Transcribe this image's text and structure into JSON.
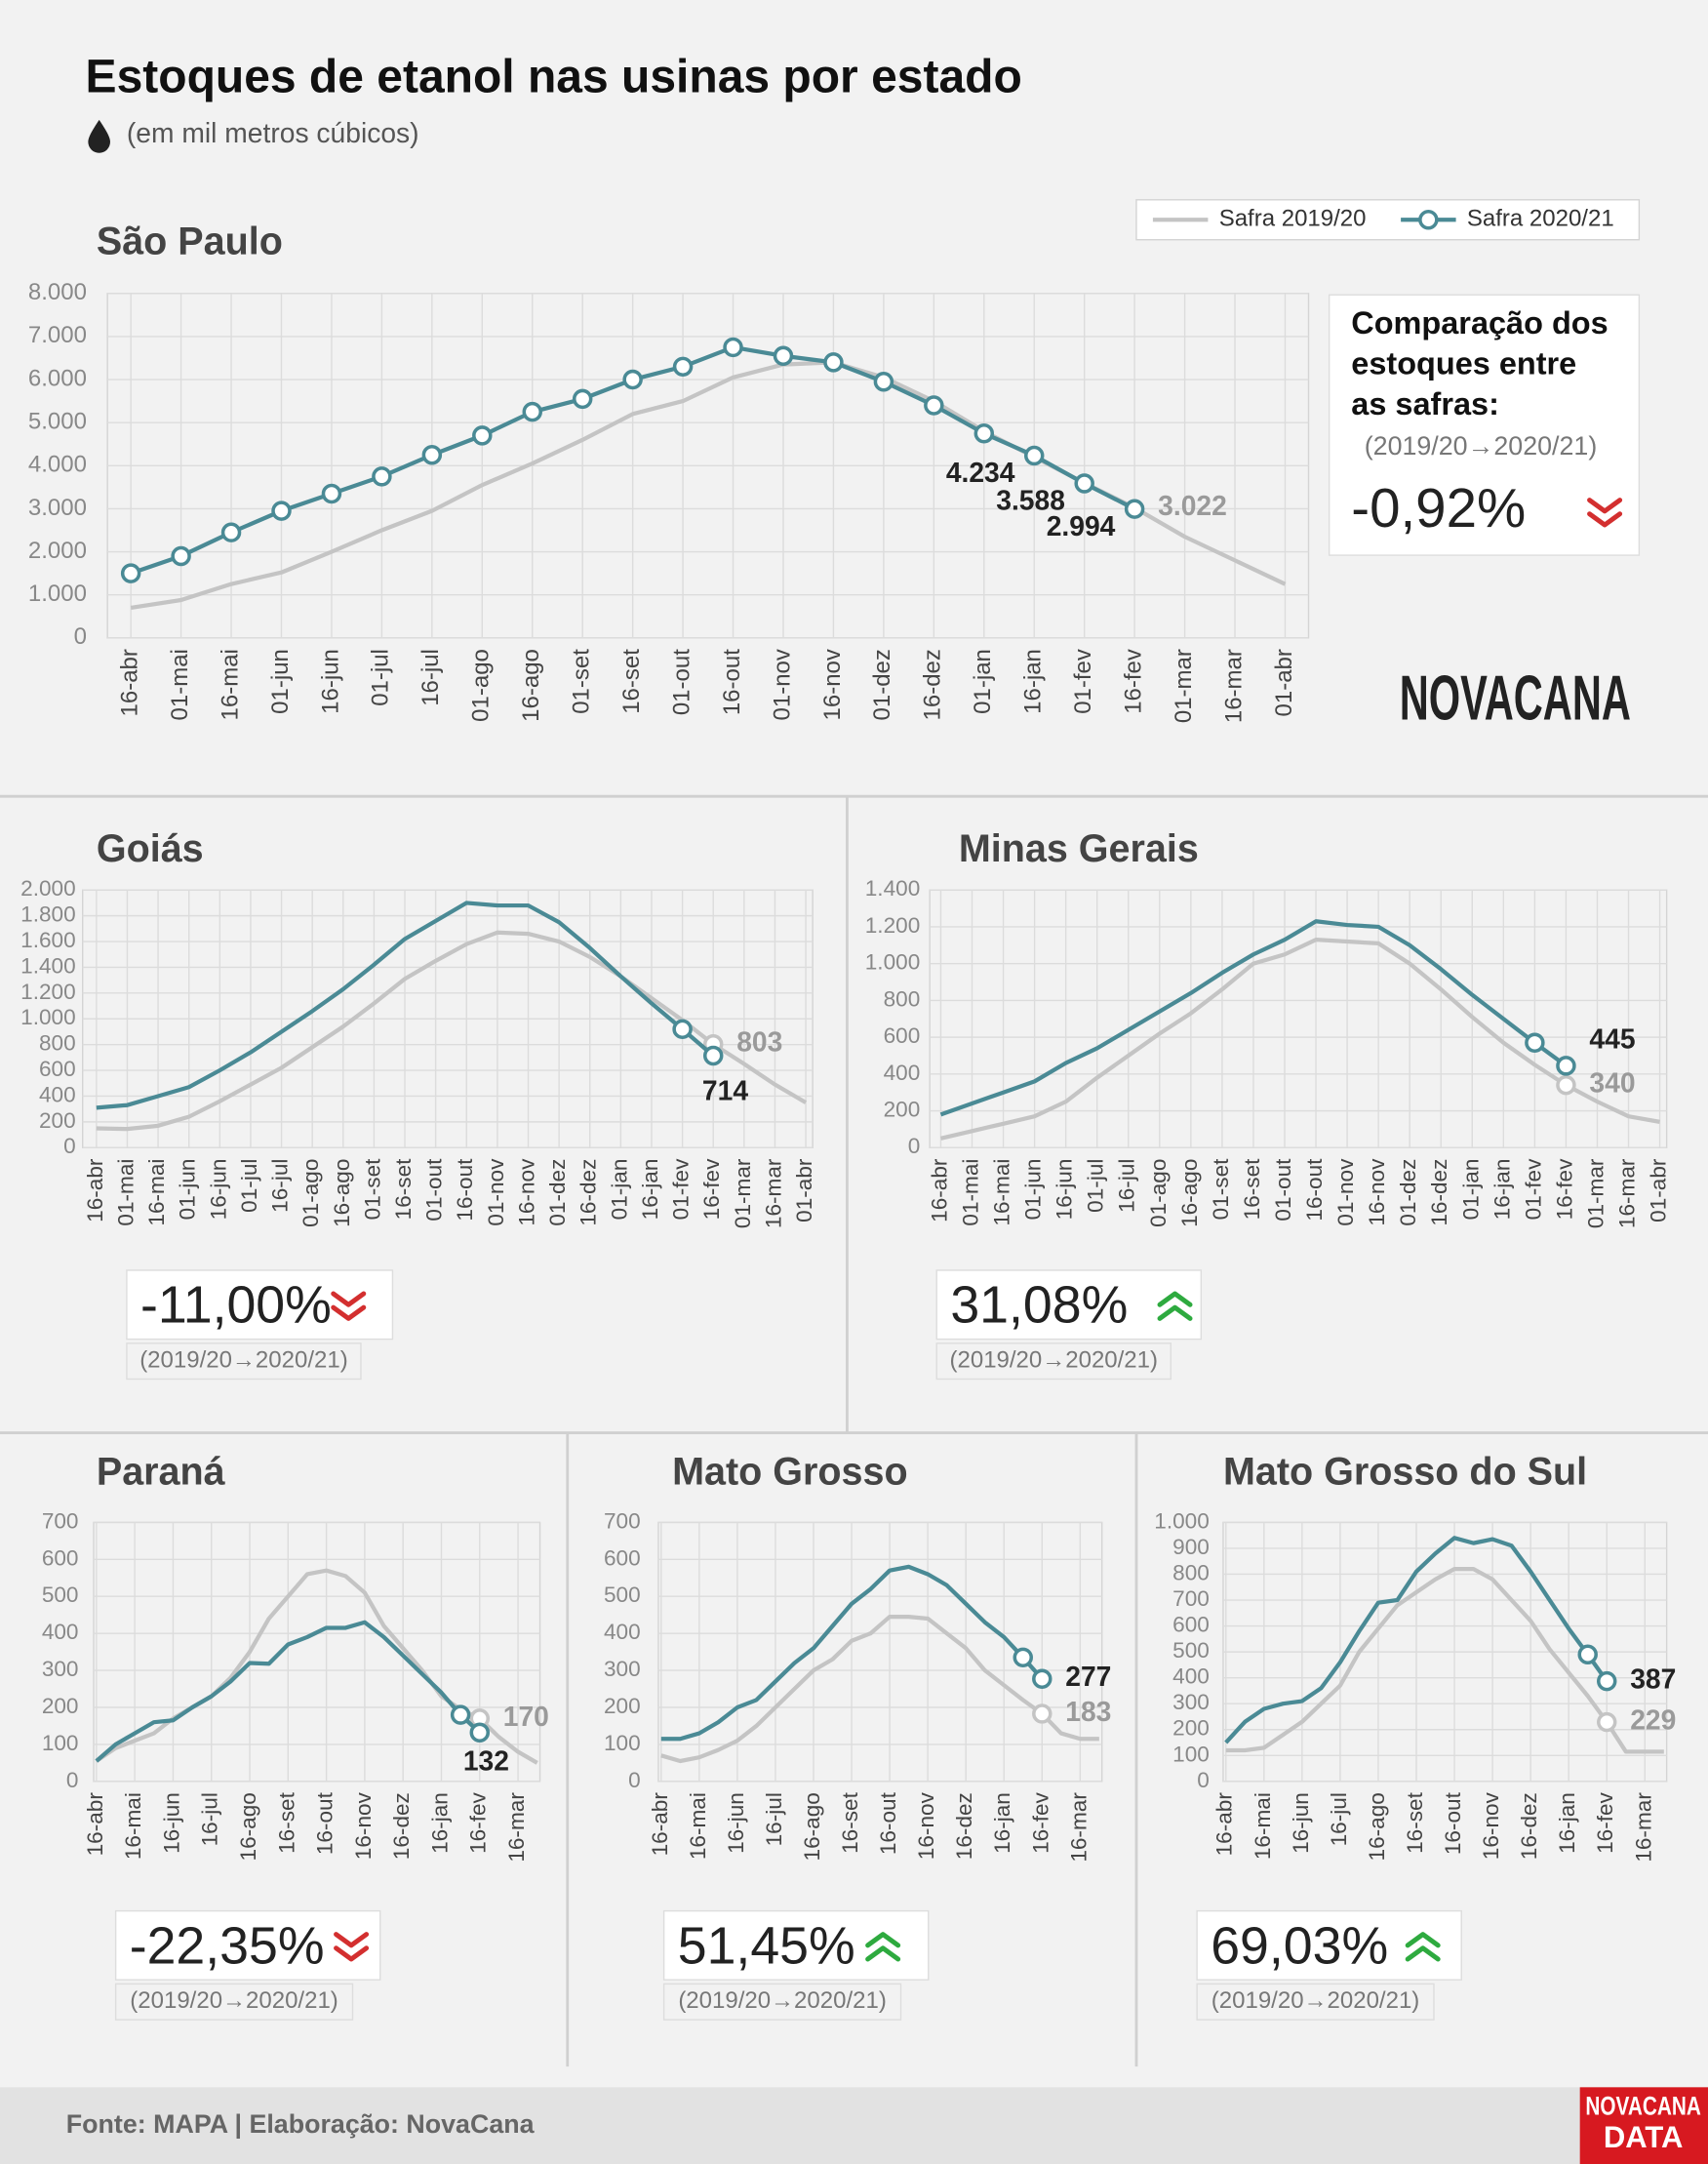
{
  "header": {
    "title": "Estoques de etanol nas usinas por estado",
    "subtitle": "(em mil metros cúbicos)"
  },
  "footer": {
    "source": "Fonte: MAPA  | Elaboração: NovaCana"
  },
  "logos": {
    "main": "NOVACANA",
    "data": [
      "NOVACANA",
      "DATA"
    ]
  },
  "chart_data": [
    {
      "type": "line",
      "title": "São Paulo",
      "categories": [
        "16-abr",
        "01-mai",
        "16-mai",
        "01-jun",
        "16-jun",
        "01-jul",
        "16-jul",
        "01-ago",
        "16-ago",
        "01-set",
        "16-set",
        "01-out",
        "16-out",
        "01-nov",
        "16-nov",
        "01-dez",
        "16-dez",
        "01-jan",
        "16-jan",
        "01-fev",
        "16-fev",
        "01-mar",
        "16-mar",
        "01-abr"
      ],
      "series": [
        {
          "name": "Safra 2019/20",
          "color": "#c4c4c4",
          "values": [
            700,
            880,
            1250,
            1520,
            2000,
            2500,
            2950,
            3550,
            4050,
            4600,
            5200,
            5500,
            6050,
            6350,
            6400,
            6050,
            5500,
            4800,
            4200,
            3600,
            3022,
            2350,
            1800,
            1250
          ],
          "value_labels": [
            null,
            null,
            null,
            null,
            null,
            null,
            null,
            null,
            null,
            null,
            null,
            null,
            null,
            null,
            null,
            null,
            null,
            null,
            null,
            null,
            "3.022",
            null,
            null,
            null
          ]
        },
        {
          "name": "Safra 2020/21",
          "color": "#4a8a95",
          "values": [
            1500,
            1900,
            2450,
            2950,
            3350,
            3750,
            4250,
            4700,
            5250,
            5550,
            6000,
            6300,
            6750,
            6550,
            6400,
            5950,
            5400,
            4750,
            4234,
            3588,
            2994,
            null,
            null,
            null
          ],
          "value_labels": [
            null,
            null,
            null,
            null,
            null,
            null,
            null,
            null,
            null,
            null,
            null,
            null,
            null,
            null,
            null,
            null,
            null,
            null,
            "4.234",
            "3.588",
            "2.994",
            null,
            null,
            null
          ]
        }
      ],
      "ylim": [
        0,
        8000
      ],
      "yticks": [
        0,
        {
          "value": 1000,
          "label": "1.000"
        },
        {
          "value": 2000,
          "label": "2.000"
        },
        {
          "value": 3000,
          "label": "3.000"
        },
        {
          "value": 4000,
          "label": "4.000"
        },
        {
          "value": 5000,
          "label": "5.000"
        },
        {
          "value": 6000,
          "label": "6.000"
        },
        {
          "value": 7000,
          "label": "7.000"
        },
        {
          "value": 8000,
          "label": "8.000"
        }
      ],
      "grid": true,
      "comparison": {
        "title": [
          "Comparação dos",
          "estoques entre",
          "as safras:"
        ],
        "period": "(2019/20→2020/21)",
        "value": "-0,92%",
        "trend": "down"
      }
    },
    {
      "type": "line",
      "title": "Goiás",
      "categories": [
        "16-abr",
        "01-mai",
        "16-mai",
        "01-jun",
        "16-jun",
        "01-jul",
        "16-jul",
        "01-ago",
        "16-ago",
        "01-set",
        "16-set",
        "01-out",
        "16-out",
        "01-nov",
        "16-nov",
        "01-dez",
        "16-dez",
        "01-jan",
        "16-jan",
        "01-fev",
        "16-fev",
        "01-mar",
        "16-mar",
        "01-abr"
      ],
      "series": [
        {
          "color": "#c4c4c4",
          "values": [
            150,
            145,
            170,
            240,
            360,
            490,
            620,
            780,
            940,
            1120,
            1310,
            1450,
            1580,
            1670,
            1660,
            1600,
            1480,
            1330,
            1160,
            990,
            803,
            650,
            490,
            350
          ],
          "value_labels": [
            null,
            null,
            null,
            null,
            null,
            null,
            null,
            null,
            null,
            null,
            null,
            null,
            null,
            null,
            null,
            null,
            null,
            null,
            null,
            null,
            "803",
            null,
            null,
            null
          ]
        },
        {
          "color": "#4a8a95",
          "values": [
            310,
            330,
            400,
            470,
            600,
            740,
            900,
            1060,
            1230,
            1420,
            1620,
            1760,
            1900,
            1880,
            1880,
            1750,
            1550,
            1330,
            1120,
            920,
            714,
            null,
            null,
            null
          ],
          "value_labels": [
            null,
            null,
            null,
            null,
            null,
            null,
            null,
            null,
            null,
            null,
            null,
            null,
            null,
            null,
            null,
            null,
            null,
            null,
            null,
            null,
            "714",
            null,
            null,
            null
          ]
        }
      ],
      "ylim": [
        0,
        2000
      ],
      "yticks": [
        0,
        200,
        400,
        600,
        800,
        {
          "value": 1000,
          "label": "1.000"
        },
        {
          "value": 1200,
          "label": "1.200"
        },
        {
          "value": 1400,
          "label": "1.400"
        },
        {
          "value": 1600,
          "label": "1.600"
        },
        {
          "value": 1800,
          "label": "1.800"
        },
        {
          "value": 2000,
          "label": "2.000"
        }
      ],
      "grid": true,
      "comparison": {
        "period": "(2019/20→2020/21)",
        "value": "-11,00%",
        "trend": "down"
      }
    },
    {
      "type": "line",
      "title": "Minas Gerais",
      "categories": [
        "16-abr",
        "01-mai",
        "16-mai",
        "01-jun",
        "16-jun",
        "01-jul",
        "16-jul",
        "01-ago",
        "16-ago",
        "01-set",
        "16-set",
        "01-out",
        "16-out",
        "01-nov",
        "16-nov",
        "01-dez",
        "16-dez",
        "01-jan",
        "16-jan",
        "01-fev",
        "16-fev",
        "01-mar",
        "16-mar",
        "01-abr"
      ],
      "series": [
        {
          "color": "#c4c4c4",
          "values": [
            50,
            90,
            130,
            170,
            250,
            380,
            500,
            620,
            730,
            860,
            1000,
            1050,
            1130,
            1120,
            1110,
            1000,
            860,
            710,
            570,
            450,
            340,
            250,
            170,
            140
          ],
          "value_labels": [
            null,
            null,
            null,
            null,
            null,
            null,
            null,
            null,
            null,
            null,
            null,
            null,
            null,
            null,
            null,
            null,
            null,
            null,
            null,
            null,
            "340",
            null,
            null,
            null
          ]
        },
        {
          "color": "#4a8a95",
          "values": [
            180,
            240,
            300,
            360,
            460,
            540,
            640,
            740,
            840,
            950,
            1050,
            1130,
            1230,
            1210,
            1200,
            1100,
            970,
            830,
            700,
            570,
            445,
            null,
            null,
            null
          ],
          "value_labels": [
            null,
            null,
            null,
            null,
            null,
            null,
            null,
            null,
            null,
            null,
            null,
            null,
            null,
            null,
            null,
            null,
            null,
            null,
            null,
            null,
            "445",
            null,
            null,
            null
          ]
        }
      ],
      "ylim": [
        0,
        1400
      ],
      "yticks": [
        0,
        200,
        400,
        600,
        800,
        {
          "value": 1000,
          "label": "1.000"
        },
        {
          "value": 1200,
          "label": "1.200"
        },
        {
          "value": 1400,
          "label": "1.400"
        }
      ],
      "grid": true,
      "comparison": {
        "period": "(2019/20→2020/21)",
        "value": "31,08%",
        "trend": "up"
      }
    },
    {
      "type": "line",
      "title": "Paraná",
      "categories": [
        "16-abr",
        null,
        "16-mai",
        null,
        "16-jun",
        null,
        "16-jul",
        null,
        "16-ago",
        null,
        "16-set",
        null,
        "16-out",
        null,
        "16-nov",
        null,
        "16-dez",
        null,
        "16-jan",
        null,
        "16-fev",
        null,
        "16-mar",
        null
      ],
      "series": [
        {
          "color": "#c4c4c4",
          "values": [
            55,
            90,
            110,
            130,
            170,
            200,
            230,
            280,
            350,
            440,
            500,
            560,
            570,
            555,
            510,
            420,
            360,
            300,
            230,
            195,
            170,
            120,
            80,
            50
          ],
          "value_labels": [
            null,
            null,
            null,
            null,
            null,
            null,
            null,
            null,
            null,
            null,
            null,
            null,
            null,
            null,
            null,
            null,
            null,
            null,
            null,
            null,
            "170",
            null,
            null,
            null
          ]
        },
        {
          "color": "#4a8a95",
          "values": [
            55,
            100,
            130,
            160,
            165,
            200,
            230,
            270,
            320,
            318,
            370,
            390,
            415,
            415,
            430,
            390,
            340,
            290,
            240,
            180,
            132,
            null,
            null,
            null
          ],
          "value_labels": [
            null,
            null,
            null,
            null,
            null,
            null,
            null,
            null,
            null,
            null,
            null,
            null,
            null,
            null,
            null,
            null,
            null,
            null,
            null,
            null,
            "132",
            null,
            null,
            null
          ]
        }
      ],
      "ylim": [
        0,
        700
      ],
      "yticks": [
        0,
        100,
        200,
        300,
        400,
        500,
        600,
        700
      ],
      "grid": true,
      "comparison": {
        "period": "(2019/20→2020/21)",
        "value": "-22,35%",
        "trend": "down"
      }
    },
    {
      "type": "line",
      "title": "Mato Grosso",
      "categories": [
        "16-abr",
        null,
        "16-mai",
        null,
        "16-jun",
        null,
        "16-jul",
        null,
        "16-ago",
        null,
        "16-set",
        null,
        "16-out",
        null,
        "16-nov",
        null,
        "16-dez",
        null,
        "16-jan",
        null,
        "16-fev",
        null,
        "16-mar",
        null
      ],
      "series": [
        {
          "color": "#c4c4c4",
          "values": [
            70,
            55,
            65,
            85,
            110,
            150,
            200,
            250,
            300,
            330,
            380,
            400,
            445,
            445,
            440,
            400,
            360,
            300,
            260,
            220,
            183,
            130,
            115,
            115
          ],
          "value_labels": [
            null,
            null,
            null,
            null,
            null,
            null,
            null,
            null,
            null,
            null,
            null,
            null,
            null,
            null,
            null,
            null,
            null,
            null,
            null,
            null,
            "183",
            null,
            null,
            null
          ]
        },
        {
          "color": "#4a8a95",
          "values": [
            115,
            115,
            130,
            160,
            200,
            220,
            270,
            320,
            360,
            420,
            480,
            520,
            570,
            580,
            560,
            530,
            480,
            430,
            390,
            335,
            277,
            null,
            null,
            null
          ],
          "value_labels": [
            null,
            null,
            null,
            null,
            null,
            null,
            null,
            null,
            null,
            null,
            null,
            null,
            null,
            null,
            null,
            null,
            null,
            null,
            null,
            null,
            "277",
            null,
            null,
            null
          ]
        }
      ],
      "ylim": [
        0,
        700
      ],
      "yticks": [
        0,
        100,
        200,
        300,
        400,
        500,
        600,
        700
      ],
      "grid": true,
      "comparison": {
        "period": "(2019/20→2020/21)",
        "value": "51,45%",
        "trend": "up"
      }
    },
    {
      "type": "line",
      "title": "Mato Grosso do Sul",
      "categories": [
        "16-abr",
        null,
        "16-mai",
        null,
        "16-jun",
        null,
        "16-jul",
        null,
        "16-ago",
        null,
        "16-set",
        null,
        "16-out",
        null,
        "16-nov",
        null,
        "16-dez",
        null,
        "16-jan",
        null,
        "16-fev",
        null,
        "16-mar",
        null
      ],
      "series": [
        {
          "color": "#c4c4c4",
          "values": [
            120,
            120,
            130,
            180,
            230,
            300,
            370,
            500,
            590,
            680,
            730,
            780,
            820,
            820,
            780,
            700,
            620,
            510,
            420,
            330,
            229,
            115,
            115,
            115
          ],
          "value_labels": [
            null,
            null,
            null,
            null,
            null,
            null,
            null,
            null,
            null,
            null,
            null,
            null,
            null,
            null,
            null,
            null,
            null,
            null,
            null,
            null,
            "229",
            null,
            null,
            null
          ]
        },
        {
          "color": "#4a8a95",
          "values": [
            150,
            230,
            280,
            300,
            310,
            360,
            460,
            580,
            690,
            700,
            810,
            880,
            940,
            920,
            935,
            910,
            810,
            700,
            590,
            490,
            387,
            null,
            null,
            null
          ],
          "value_labels": [
            null,
            null,
            null,
            null,
            null,
            null,
            null,
            null,
            null,
            null,
            null,
            null,
            null,
            null,
            null,
            null,
            null,
            null,
            null,
            null,
            "387",
            null,
            null,
            null
          ]
        }
      ],
      "ylim": [
        0,
        1000
      ],
      "yticks": [
        0,
        100,
        200,
        300,
        400,
        500,
        600,
        700,
        800,
        900,
        {
          "value": 1000,
          "label": "1.000"
        }
      ],
      "grid": true,
      "comparison": {
        "period": "(2019/20→2020/21)",
        "value": "69,03%",
        "trend": "up"
      }
    }
  ]
}
